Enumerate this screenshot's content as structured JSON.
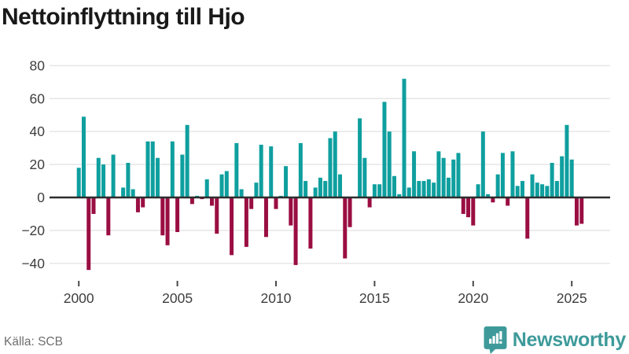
{
  "title": "Nettoinflyttning till Hjo",
  "footer": {
    "source": "Källa: SCB"
  },
  "branding": {
    "name": "Newsworthy",
    "icon": "newsworthy-logo-icon",
    "color": "#3e9a9a"
  },
  "chart_data": {
    "type": "bar",
    "title": "Nettoinflyttning till Hjo",
    "frequency": "quarterly",
    "x_start": "2000 Q1",
    "x_end": "2025 Q3",
    "x_tick_years": [
      2000,
      2005,
      2010,
      2015,
      2020,
      2025
    ],
    "y_ticks": [
      80,
      60,
      40,
      20,
      0,
      -20,
      -40
    ],
    "ylim": [
      -48,
      84
    ],
    "grid": true,
    "legend": false,
    "positive_color": "#0f9f9f",
    "negative_color": "#9a0e42",
    "values": [
      18,
      49,
      -44,
      -10,
      24,
      20,
      -23,
      26,
      0,
      6,
      21,
      5,
      -9,
      -6,
      34,
      34,
      24,
      -23,
      -29,
      34,
      -21,
      26,
      44,
      -4,
      1,
      -1,
      11,
      -5,
      -22,
      14,
      16,
      -35,
      33,
      5,
      -30,
      -7,
      9,
      32,
      -24,
      31,
      -7,
      1,
      19,
      -17,
      -41,
      33,
      10,
      -31,
      6,
      12,
      10,
      36,
      40,
      14,
      -37,
      -18,
      0,
      48,
      24,
      -6,
      8,
      8,
      58,
      40,
      13,
      2,
      72,
      6,
      28,
      10,
      10,
      11,
      9,
      28,
      24,
      12,
      23,
      27,
      -10,
      -12,
      -17,
      8,
      40,
      2,
      -3,
      14,
      27,
      -5,
      28,
      7,
      10,
      -25,
      14,
      9,
      8,
      7,
      21,
      10,
      25,
      44,
      23,
      -17,
      -16
    ]
  }
}
